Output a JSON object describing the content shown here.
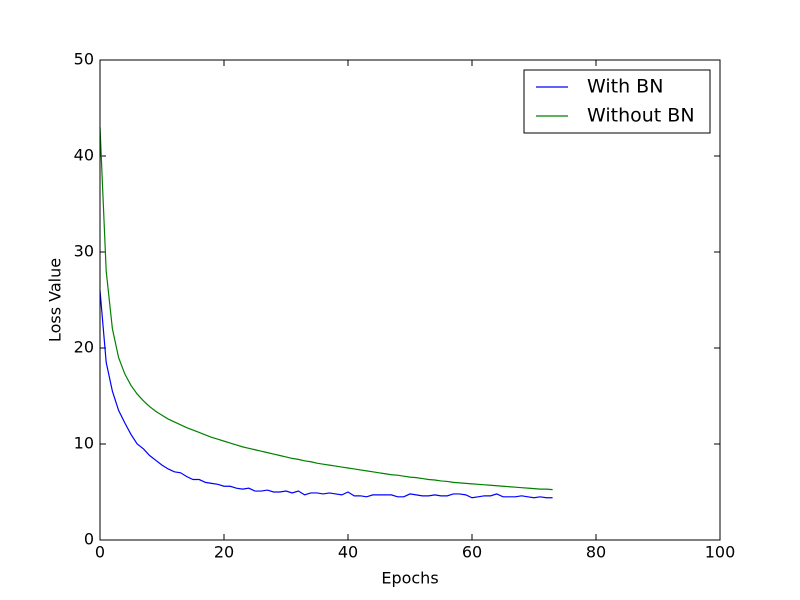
{
  "chart_data": {
    "type": "line",
    "xlabel": "Epochs",
    "ylabel": "Loss Value",
    "x": [
      0,
      1,
      2,
      3,
      4,
      5,
      6,
      7,
      8,
      9,
      10,
      11,
      12,
      13,
      14,
      15,
      16,
      17,
      18,
      19,
      20,
      21,
      22,
      23,
      24,
      25,
      26,
      27,
      28,
      29,
      30,
      31,
      32,
      33,
      34,
      35,
      36,
      37,
      38,
      39,
      40,
      41,
      42,
      43,
      44,
      45,
      46,
      47,
      48,
      49,
      50,
      51,
      52,
      53,
      54,
      55,
      56,
      57,
      58,
      59,
      60,
      61,
      62,
      63,
      64,
      65,
      66,
      67,
      68,
      69,
      70,
      71,
      72,
      73
    ],
    "series": [
      {
        "name": "With BN",
        "color": "#0000ff",
        "values": [
          26,
          18.5,
          15.5,
          13.5,
          12.2,
          11,
          10,
          9.5,
          8.8,
          8.3,
          7.8,
          7.4,
          7.1,
          7.0,
          6.6,
          6.3,
          6.3,
          6.0,
          5.9,
          5.8,
          5.6,
          5.6,
          5.4,
          5.3,
          5.4,
          5.1,
          5.1,
          5.2,
          5.0,
          5.0,
          5.1,
          4.9,
          5.1,
          4.7,
          4.9,
          4.9,
          4.8,
          4.9,
          4.8,
          4.7,
          5.0,
          4.6,
          4.6,
          4.5,
          4.7,
          4.7,
          4.7,
          4.7,
          4.5,
          4.5,
          4.8,
          4.7,
          4.6,
          4.6,
          4.7,
          4.6,
          4.6,
          4.8,
          4.8,
          4.7,
          4.4,
          4.5,
          4.6,
          4.6,
          4.8,
          4.5,
          4.5,
          4.5,
          4.6,
          4.5,
          4.4,
          4.5,
          4.4,
          4.4
        ]
      },
      {
        "name": "Without BN",
        "color": "#008000",
        "values": [
          43,
          28,
          22,
          19,
          17.3,
          16.1,
          15.2,
          14.5,
          13.9,
          13.4,
          13.0,
          12.6,
          12.3,
          12.0,
          11.7,
          11.45,
          11.2,
          10.95,
          10.7,
          10.5,
          10.3,
          10.1,
          9.9,
          9.7,
          9.55,
          9.4,
          9.25,
          9.1,
          8.95,
          8.8,
          8.65,
          8.5,
          8.4,
          8.25,
          8.15,
          8.0,
          7.9,
          7.8,
          7.7,
          7.6,
          7.5,
          7.4,
          7.3,
          7.2,
          7.1,
          7.0,
          6.9,
          6.8,
          6.75,
          6.65,
          6.55,
          6.5,
          6.4,
          6.3,
          6.25,
          6.15,
          6.1,
          6.0,
          5.95,
          5.9,
          5.85,
          5.8,
          5.75,
          5.7,
          5.65,
          5.6,
          5.55,
          5.5,
          5.45,
          5.4,
          5.35,
          5.3,
          5.3,
          5.25
        ]
      }
    ],
    "xlim": [
      0,
      100
    ],
    "xticks": [
      0,
      20,
      40,
      60,
      80,
      100
    ],
    "ylim": [
      0,
      50
    ],
    "yticks": [
      0,
      10,
      20,
      30,
      40,
      50
    ],
    "grid": false,
    "legend": "upper right"
  }
}
